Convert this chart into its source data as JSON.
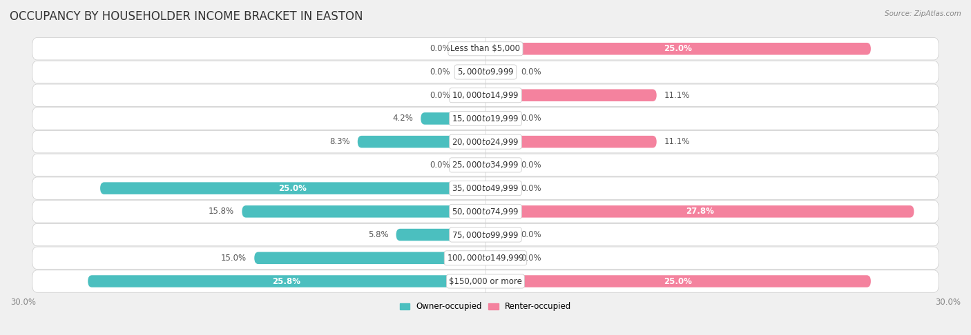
{
  "title": "OCCUPANCY BY HOUSEHOLDER INCOME BRACKET IN EASTON",
  "source": "Source: ZipAtlas.com",
  "categories": [
    "Less than $5,000",
    "$5,000 to $9,999",
    "$10,000 to $14,999",
    "$15,000 to $19,999",
    "$20,000 to $24,999",
    "$25,000 to $34,999",
    "$35,000 to $49,999",
    "$50,000 to $74,999",
    "$75,000 to $99,999",
    "$100,000 to $149,999",
    "$150,000 or more"
  ],
  "owner_values": [
    0.0,
    0.0,
    0.0,
    4.2,
    8.3,
    0.0,
    25.0,
    15.8,
    5.8,
    15.0,
    25.8
  ],
  "renter_values": [
    25.0,
    0.0,
    11.1,
    0.0,
    11.1,
    0.0,
    0.0,
    27.8,
    0.0,
    0.0,
    25.0
  ],
  "owner_color": "#4bbfbf",
  "renter_color": "#f4829e",
  "bar_height": 0.52,
  "xlim": 30.0,
  "background_color": "#f0f0f0",
  "row_bg_color": "#ffffff",
  "legend_owner": "Owner-occupied",
  "legend_renter": "Renter-occupied",
  "title_fontsize": 12,
  "label_fontsize": 8.5,
  "category_fontsize": 8.5,
  "axis_fontsize": 8.5,
  "zero_bar_val": 2.0,
  "label_threshold": 18.0
}
